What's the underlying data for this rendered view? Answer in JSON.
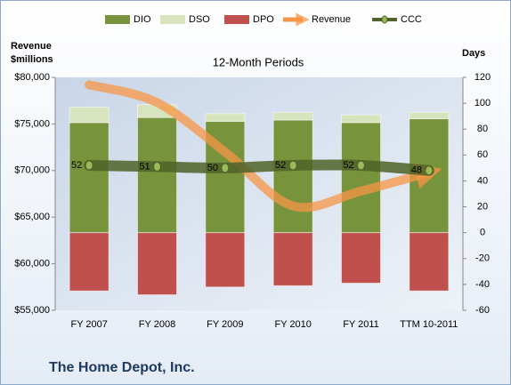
{
  "chart_data": {
    "type": "bar",
    "title": "12-Month Periods",
    "y_label": [
      "Revenue",
      "$millions"
    ],
    "y2_label": "Days",
    "footer": "The Home Depot, Inc.",
    "categories": [
      "FY 2007",
      "FY 2008",
      "FY 2009",
      "FY 2010",
      "FY 2011",
      "TTM 10-2011"
    ],
    "series": [
      {
        "name": "DIO",
        "type": "bar",
        "axis": "y2",
        "color": "#77933c",
        "values": [
          85,
          89,
          86,
          87,
          85,
          88
        ]
      },
      {
        "name": "DSO",
        "type": "bar",
        "axis": "y2",
        "color": "#d7e4bd",
        "values": [
          12,
          10,
          6,
          6,
          6,
          5
        ]
      },
      {
        "name": "DPO",
        "type": "bar",
        "axis": "y2",
        "color": "#c0504d",
        "values": [
          -45,
          -48,
          -42,
          -41,
          -39,
          -45
        ]
      },
      {
        "name": "Revenue",
        "type": "line",
        "color": "#f79646",
        "values": [
          79200,
          77300,
          72000,
          66200,
          67800,
          69800
        ]
      },
      {
        "name": "CCC",
        "type": "line",
        "axis": "y2",
        "color": "#4f6228",
        "values": [
          52,
          51,
          50,
          52,
          52,
          48
        ]
      }
    ],
    "ylim": [
      55000,
      80000
    ],
    "yticks": [
      {
        "value": 55000,
        "label": "$55,000"
      },
      {
        "value": 60000,
        "label": "$60,000"
      },
      {
        "value": 65000,
        "label": "$65,000"
      },
      {
        "value": 70000,
        "label": "$70,000"
      },
      {
        "value": 75000,
        "label": "$75,000"
      },
      {
        "value": 80000,
        "label": "$80,000"
      }
    ],
    "y2lim": [
      -60,
      120
    ],
    "y2ticks": [
      -60,
      -40,
      -20,
      0,
      20,
      40,
      60,
      80,
      100,
      120
    ],
    "legend": "top"
  }
}
